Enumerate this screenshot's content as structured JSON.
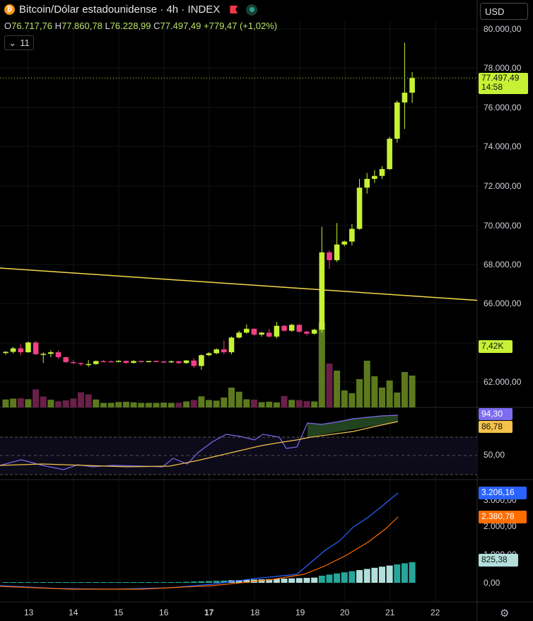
{
  "header": {
    "coin_icon": "bitcoin-icon",
    "title": "Bitcoin/Dólar estadounidense · 4h · INDEX",
    "ohlc": {
      "o_label": "O",
      "o": "76.717,76",
      "h_label": "H",
      "h": "77.860,78",
      "l_label": "L",
      "l": "76.228,99",
      "c_label": "C",
      "c": "77.497,49",
      "change": "+779,47 (+1,02%)"
    },
    "indicators_count": "11",
    "currency": "USD"
  },
  "price_axis": [
    "80.000,00",
    "78.000,00",
    "76.000,00",
    "74.000,00",
    "72.000,00",
    "70.000,00",
    "68.000,00",
    "66.000,00",
    "62.000,00"
  ],
  "price_badge": {
    "price": "77.497,49",
    "countdown": "14:58"
  },
  "volume_badge": "7,42K",
  "rsi": {
    "axis": [
      "50,00"
    ],
    "rsi_value": "94,30",
    "ma_value": "86,78"
  },
  "macd": {
    "axis": [
      "3.000,00",
      "2.000,00",
      "1.000,00",
      "0,00"
    ],
    "macd_value": "3.206,16",
    "signal_value": "2.380,78",
    "hist_value": "825,38"
  },
  "time_axis": [
    "13",
    "14",
    "15",
    "16",
    "17",
    "18",
    "19",
    "20",
    "21",
    "22"
  ],
  "colors": {
    "up": "#c6f135",
    "down": "#f23f87",
    "vol_up": "#5c7a1d",
    "vol_down": "#6a1f48",
    "trendline": "#f5d84a",
    "rsi": "#7e6cf0",
    "rsi_ma": "#f5c24a",
    "macd": "#2962ff",
    "signal": "#ff6d00",
    "hist_up": "#26a69a",
    "hist_light": "#b2dfdb"
  },
  "chart_data": {
    "type": "candlestick",
    "timeframe": "4h",
    "ylim": [
      60500,
      80800
    ],
    "candles": [
      [
        63460,
        63560,
        63380,
        63520
      ],
      [
        63520,
        63780,
        63440,
        63700
      ],
      [
        63700,
        63900,
        63350,
        63500
      ],
      [
        63500,
        64050,
        63480,
        64000
      ],
      [
        64000,
        64080,
        63360,
        63400
      ],
      [
        63400,
        63500,
        62950,
        63420
      ],
      [
        63420,
        63600,
        63250,
        63500
      ],
      [
        63500,
        63600,
        63150,
        63250
      ],
      [
        63250,
        63280,
        62950,
        63000
      ],
      [
        63000,
        63100,
        62900,
        62950
      ],
      [
        62950,
        62980,
        62800,
        62900
      ],
      [
        62900,
        63100,
        62750,
        62900
      ],
      [
        62900,
        63080,
        62860,
        63050
      ],
      [
        63050,
        63100,
        63000,
        63040
      ],
      [
        63040,
        63080,
        62990,
        63020
      ],
      [
        63020,
        63090,
        62990,
        63060
      ],
      [
        63060,
        63080,
        62900,
        62960
      ],
      [
        62960,
        63100,
        62920,
        63050
      ],
      [
        63050,
        63080,
        62980,
        63010
      ],
      [
        63010,
        63060,
        62980,
        63050
      ],
      [
        63050,
        63100,
        63000,
        63030
      ],
      [
        63030,
        63060,
        62950,
        63000
      ],
      [
        63000,
        63080,
        62960,
        63040
      ],
      [
        63040,
        63060,
        62900,
        62950
      ],
      [
        62950,
        63100,
        62920,
        63080
      ],
      [
        63080,
        63200,
        62700,
        62800
      ],
      [
        62800,
        63400,
        62600,
        63350
      ],
      [
        63350,
        63500,
        63300,
        63450
      ],
      [
        63450,
        63700,
        63400,
        63650
      ],
      [
        63650,
        64100,
        63400,
        63500
      ],
      [
        63500,
        64300,
        63400,
        64250
      ],
      [
        64250,
        64600,
        64200,
        64500
      ],
      [
        64500,
        64920,
        64450,
        64700
      ],
      [
        64700,
        64720,
        64350,
        64400
      ],
      [
        64400,
        64550,
        64300,
        64500
      ],
      [
        64500,
        64700,
        64250,
        64300
      ],
      [
        64300,
        65050,
        64200,
        64850
      ],
      [
        64850,
        64900,
        64550,
        64600
      ],
      [
        64600,
        64950,
        64550,
        64900
      ],
      [
        64900,
        64920,
        64500,
        64550
      ],
      [
        64550,
        64600,
        64350,
        64450
      ],
      [
        64450,
        64700,
        64400,
        64650
      ],
      [
        64650,
        69900,
        64500,
        68600
      ],
      [
        68600,
        68700,
        67750,
        68200
      ],
      [
        68200,
        70100,
        68100,
        69000
      ],
      [
        69000,
        69200,
        68900,
        69150
      ],
      [
        69150,
        70050,
        68950,
        69800
      ],
      [
        69800,
        72350,
        69750,
        71900
      ],
      [
        71900,
        72650,
        71600,
        72350
      ],
      [
        72350,
        72800,
        72150,
        72500
      ],
      [
        72500,
        73000,
        72350,
        72850
      ],
      [
        72850,
        74500,
        72800,
        74400
      ],
      [
        74400,
        76350,
        74200,
        76250
      ],
      [
        76250,
        79300,
        74900,
        76750
      ],
      [
        76750,
        77800,
        76230,
        77500
      ]
    ],
    "volume": [
      560,
      620,
      640,
      580,
      1280,
      770,
      540,
      430,
      500,
      630,
      1070,
      920,
      560,
      320,
      320,
      380,
      400,
      360,
      320,
      320,
      320,
      340,
      320,
      330,
      420,
      520,
      780,
      520,
      480,
      700,
      1400,
      1110,
      570,
      550,
      370,
      400,
      350,
      800,
      530,
      520,
      440,
      420,
      6000,
      3100,
      2600,
      1200,
      1000,
      2000,
      3300,
      2200,
      1400,
      1900,
      1050,
      2500,
      2250
    ],
    "volume_up_flags": [
      1,
      1,
      0,
      1,
      0,
      0,
      1,
      0,
      0,
      0,
      0,
      0,
      1,
      1,
      1,
      1,
      1,
      1,
      1,
      1,
      1,
      1,
      1,
      0,
      1,
      0,
      1,
      1,
      1,
      1,
      1,
      1,
      1,
      0,
      1,
      1,
      1,
      0,
      1,
      0,
      0,
      1,
      1,
      0,
      1,
      1,
      1,
      1,
      1,
      1,
      1,
      1,
      1,
      1,
      1
    ],
    "trendline": [
      [
        0,
        67800
      ],
      [
        675,
        66150
      ]
    ],
    "rsi_series": {
      "current": 94.3,
      "ma": 86.78
    },
    "macd_series": {
      "macd": 3206.16,
      "signal": 2380.78,
      "hist": 825.38
    }
  }
}
